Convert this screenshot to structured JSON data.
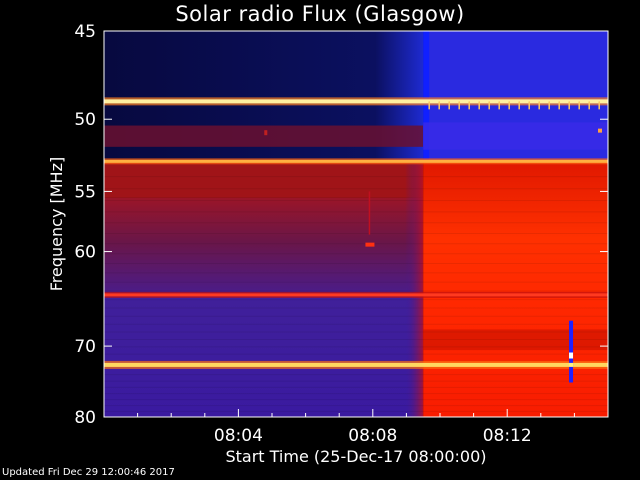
{
  "chart_data": {
    "type": "heatmap",
    "title": "Solar radio Flux (Glasgow)",
    "xlabel": "Start Time (25-Dec-17 08:00:00)",
    "ylabel": "Frequency [MHz]",
    "x_ticks": [
      "08:04",
      "08:08",
      "08:12"
    ],
    "x_tick_minutes": [
      4,
      8,
      12
    ],
    "xlim_minutes": [
      0,
      15
    ],
    "y_ticks": [
      45,
      50,
      55,
      60,
      70,
      80
    ],
    "y_tick_labels": [
      "45",
      "50",
      "55",
      "60",
      "70",
      "80"
    ],
    "ylim_mhz": [
      45,
      80
    ],
    "y_scale": "reciprocal",
    "event_onset_minutes": 9.5,
    "bright_band_mhz": [
      48.9,
      52.8,
      64.2,
      72.4
    ],
    "spike": {
      "time_minutes": 13.9,
      "freq_range_mhz": [
        67.0,
        74.8
      ]
    },
    "colors": {
      "background_low": "#3a1aa0",
      "pre_event_high_band": "#0a0f55",
      "pre_event_low_band": "#8a1020",
      "post_event_high_band": "#2b2be0",
      "post_event_low": "#ff2a00",
      "band_highlight": "#fff2a0"
    }
  },
  "footer": "Updated Fri Dec 29 12:00:46 2017"
}
